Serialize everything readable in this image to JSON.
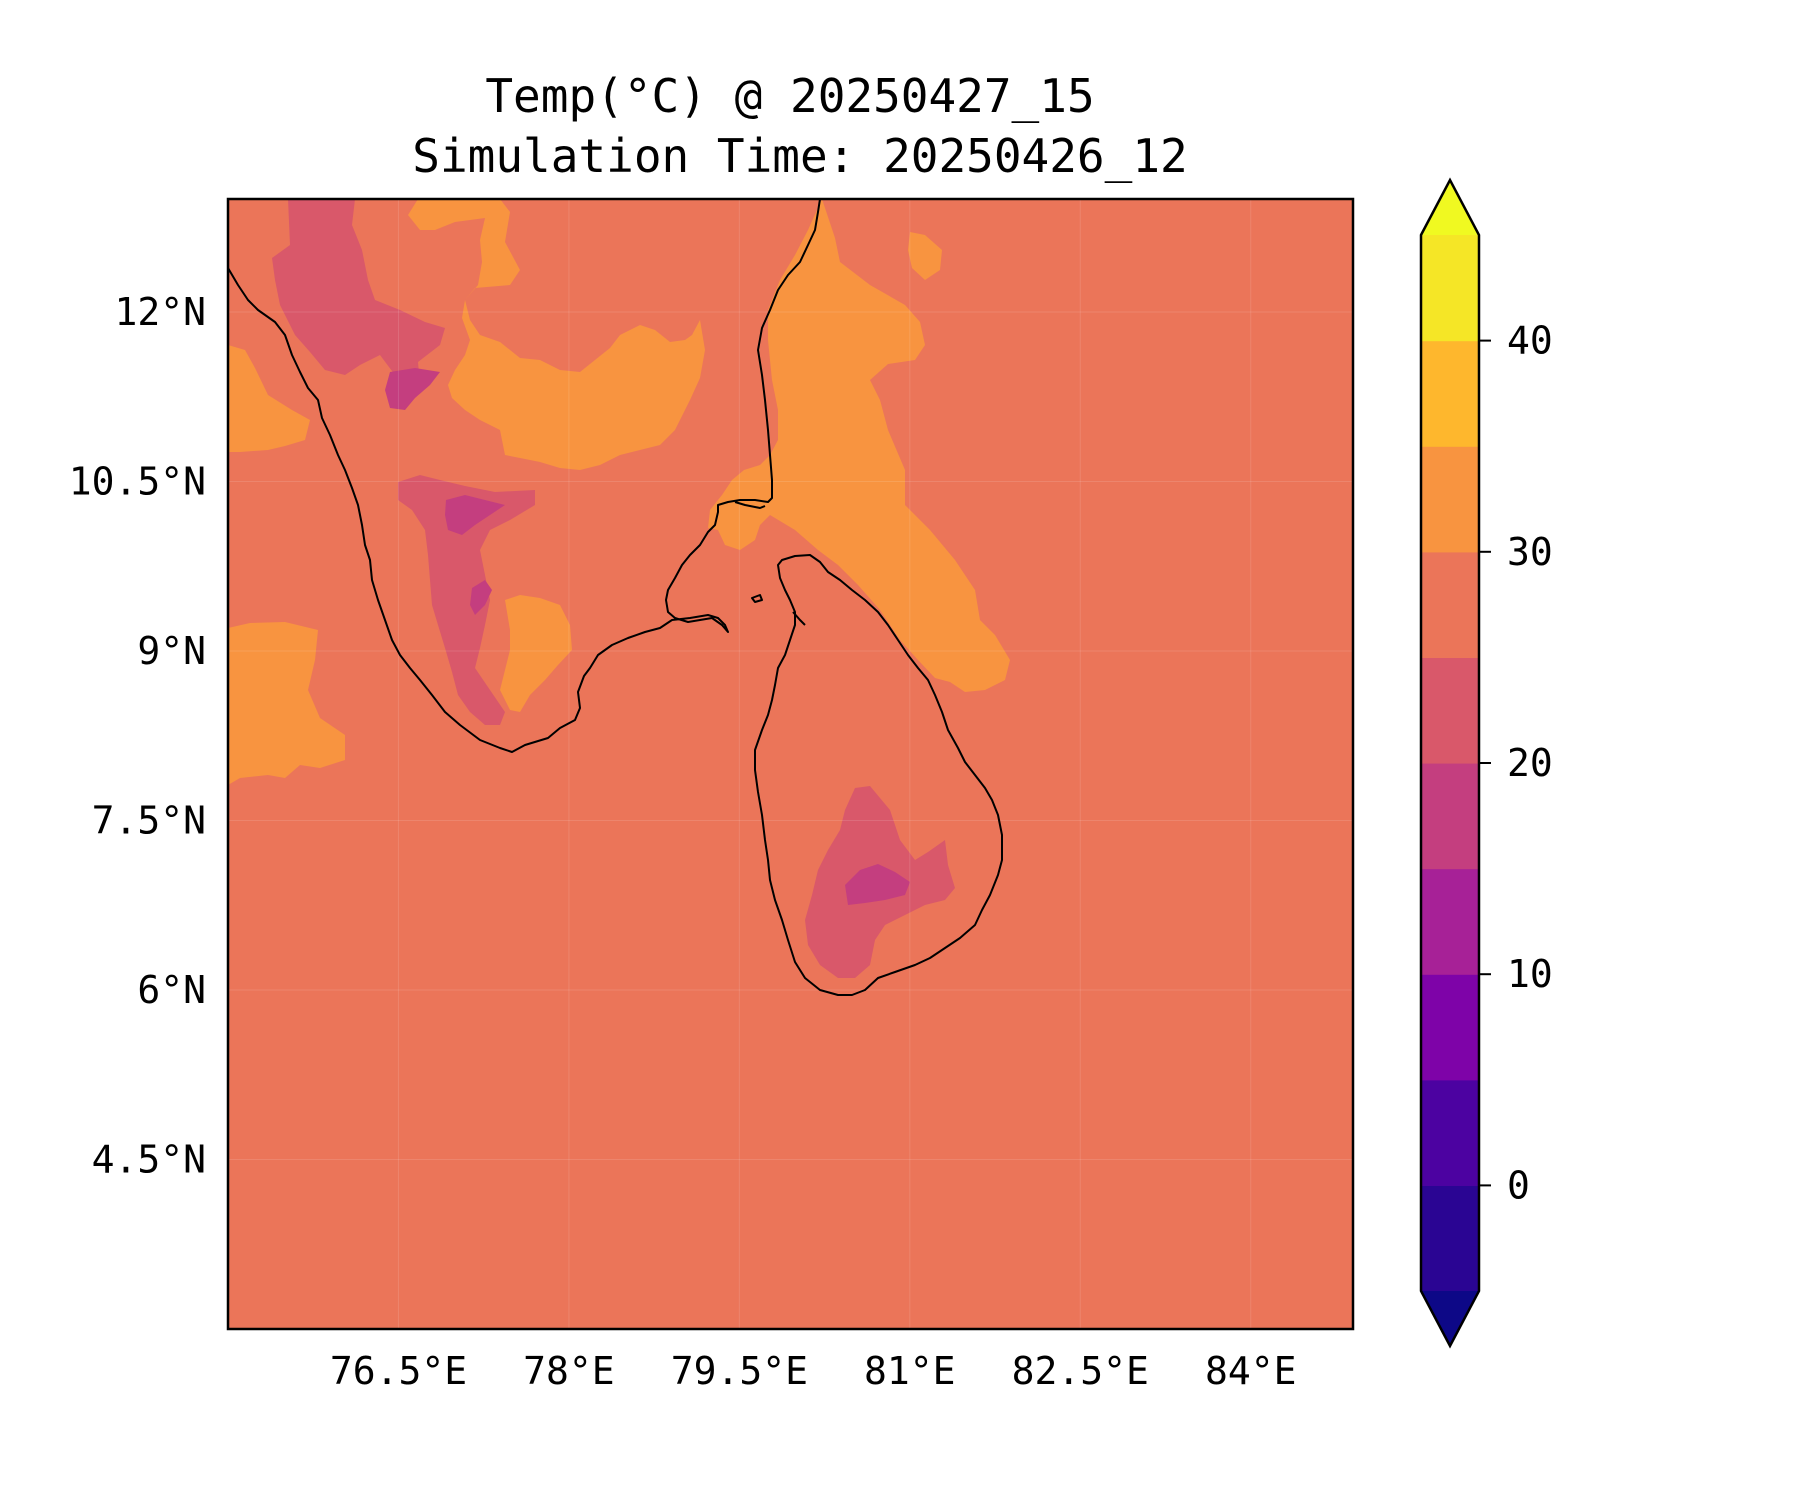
{
  "title_line1": "Temp(°C) @ 20250427_15",
  "title_line2": "Simulation Time: 20250426_12",
  "map": {
    "lon_range": [
      75.0,
      84.9
    ],
    "lat_range": [
      3.0,
      13.0
    ],
    "lon_ticks": [
      {
        "value": 76.5,
        "label": "76.5°E"
      },
      {
        "value": 78.0,
        "label": "78°E"
      },
      {
        "value": 79.5,
        "label": "79.5°E"
      },
      {
        "value": 81.0,
        "label": "81°E"
      },
      {
        "value": 82.5,
        "label": "82.5°E"
      },
      {
        "value": 84.0,
        "label": "84°E"
      }
    ],
    "lat_ticks": [
      {
        "value": 12.0,
        "label": "12°N"
      },
      {
        "value": 10.5,
        "label": "10.5°N"
      },
      {
        "value": 9.0,
        "label": "9°N"
      },
      {
        "value": 7.5,
        "label": "7.5°N"
      },
      {
        "value": 6.0,
        "label": "6°N"
      },
      {
        "value": 4.5,
        "label": "4.5°N"
      }
    ],
    "background_color": "#eb7559",
    "gridlines": true
  },
  "colorbar": {
    "colormap": "plasma",
    "levels": [
      -5,
      0,
      5,
      10,
      15,
      20,
      25,
      30,
      35,
      40,
      45
    ],
    "colors": [
      "#2a0593",
      "#4c02a1",
      "#7e03a8",
      "#a72197",
      "#c43e7f",
      "#d9586a",
      "#eb7559",
      "#f89440",
      "#feb72d",
      "#f5e626"
    ],
    "under_color": "#0d0887",
    "over_color": "#f0f921",
    "extend": "both",
    "ticks": [
      {
        "value": 0,
        "label": "0"
      },
      {
        "value": 10,
        "label": "10"
      },
      {
        "value": 20,
        "label": "20"
      },
      {
        "value": 30,
        "label": "30"
      },
      {
        "value": 40,
        "label": "40"
      }
    ]
  }
}
